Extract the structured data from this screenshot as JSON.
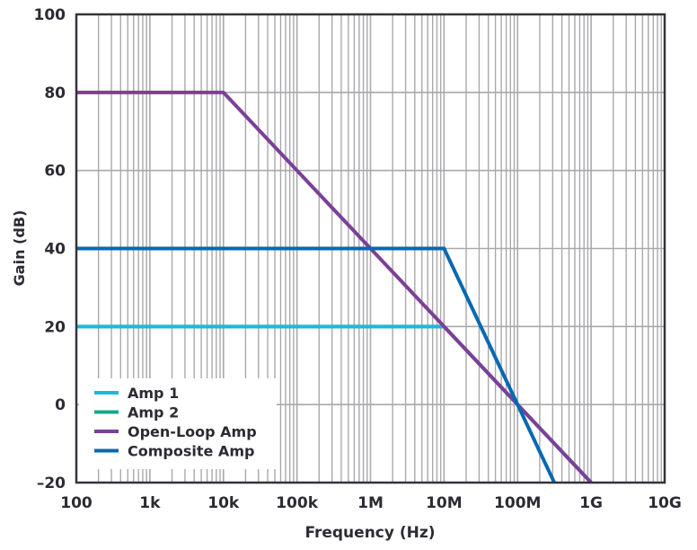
{
  "chart_data": {
    "type": "line",
    "title": "",
    "xlabel": "Frequency (Hz)",
    "ylabel": "Gain (dB)",
    "xscale": "log",
    "xlim": [
      100,
      10000000000
    ],
    "ylim": [
      -20,
      100
    ],
    "grid": true,
    "legend_position": "bottom-left",
    "x_ticks": [
      100,
      1000,
      10000,
      100000,
      1000000,
      10000000,
      100000000,
      1000000000,
      10000000000
    ],
    "x_tick_labels": [
      "100",
      "1k",
      "10k",
      "100k",
      "1M",
      "10M",
      "100M",
      "1G",
      "10G"
    ],
    "y_ticks": [
      -20,
      0,
      20,
      40,
      60,
      80,
      100
    ],
    "y_tick_labels": [
      "–20",
      "0",
      "20",
      "40",
      "60",
      "80",
      "100"
    ],
    "series": [
      {
        "name": "Amp 2",
        "color": "#14a88f",
        "x": [
          100,
          10000000,
          1000000000
        ],
        "y": [
          20,
          20,
          -20
        ]
      },
      {
        "name": "Amp 1",
        "color": "#1fb6e3",
        "x": [
          100,
          10000000,
          1000000000
        ],
        "y": [
          20,
          20,
          -20
        ]
      },
      {
        "name": "Open-Loop Amp",
        "color": "#7d3f98",
        "x": [
          100,
          10000,
          1000000000
        ],
        "y": [
          80,
          80,
          -20
        ]
      },
      {
        "name": "Composite Amp",
        "color": "#0669b2",
        "x": [
          100,
          10000000,
          316000000
        ],
        "y": [
          40,
          40,
          -20
        ]
      }
    ],
    "legend_order": [
      "Amp 1",
      "Amp 2",
      "Open-Loop Amp",
      "Composite Amp"
    ]
  }
}
